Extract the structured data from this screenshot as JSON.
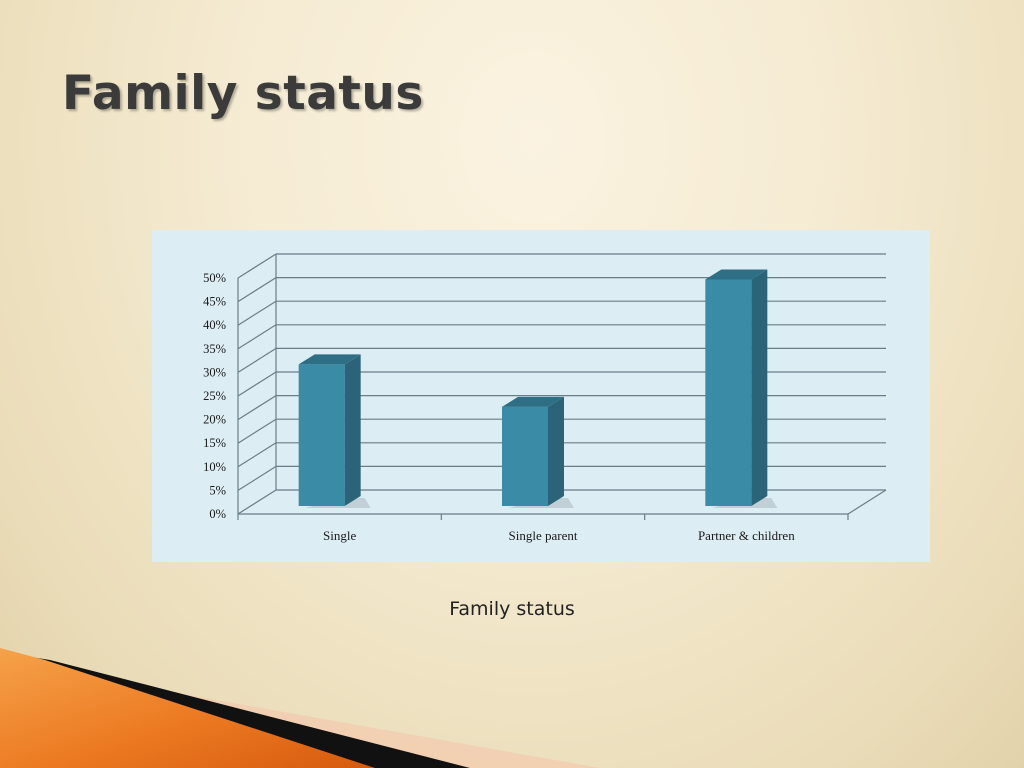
{
  "slide": {
    "title": "Family status",
    "caption": "Family status"
  },
  "chart_data": {
    "type": "bar",
    "title": "",
    "xlabel": "",
    "ylabel": "",
    "categories": [
      "Single",
      "Single parent",
      "Partner & children"
    ],
    "values": [
      30,
      21,
      48
    ],
    "value_unit": "%",
    "ylim": [
      0,
      50
    ],
    "yticks": [
      "0%",
      "5%",
      "10%",
      "15%",
      "20%",
      "25%",
      "30%",
      "35%",
      "40%",
      "45%",
      "50%"
    ],
    "three_d": true,
    "grid": true,
    "legend": "none",
    "colors": {
      "bar_front": "#3a8ba5",
      "bar_side": "#2b6479",
      "bar_top": "#2f6f86",
      "plot_background": "#dcedf4",
      "gridline": "#6d7d86"
    }
  },
  "decor": {
    "corner_colors": [
      "#f08a28",
      "#e06010",
      "#111111",
      "#f2cdb0"
    ]
  }
}
